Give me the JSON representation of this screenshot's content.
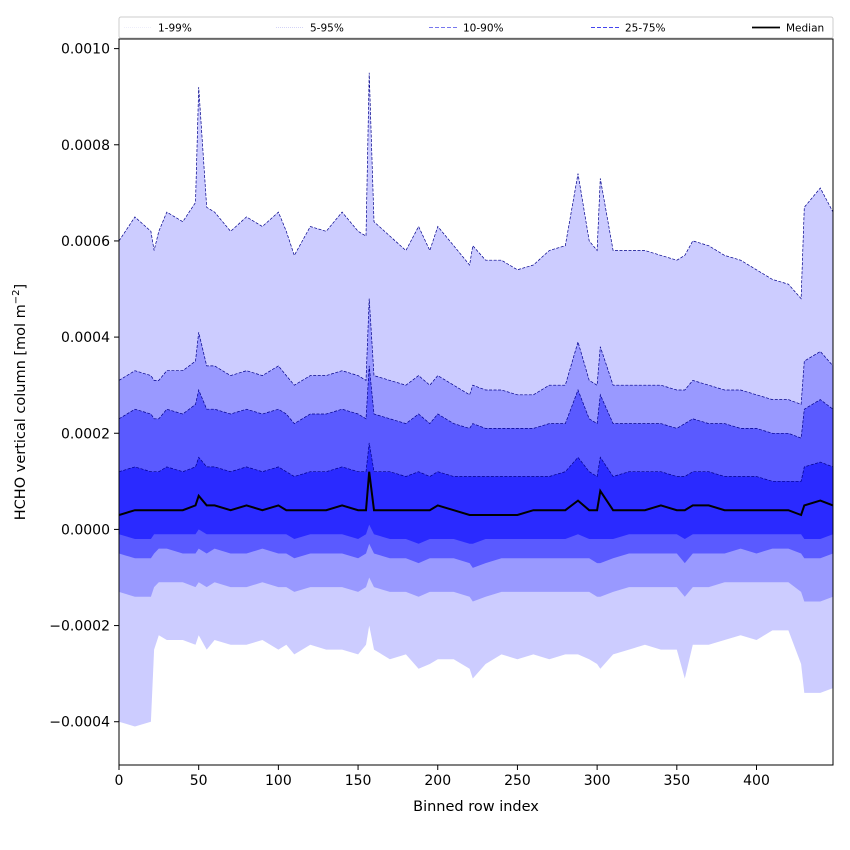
{
  "chart_data": {
    "type": "area",
    "xlabel": "Binned row index",
    "ylabel_main": "HCHO vertical column [mol m",
    "ylabel_sup": "−2",
    "ylabel_close": "]",
    "xlim": [
      0,
      448
    ],
    "ylim": [
      -0.00049,
      0.00102
    ],
    "x_ticks": [
      0,
      50,
      100,
      150,
      200,
      250,
      300,
      350,
      400
    ],
    "x_tick_labels": [
      "0",
      "50",
      "100",
      "150",
      "200",
      "250",
      "300",
      "350",
      "400"
    ],
    "y_ticks": [
      -0.0004,
      -0.0002,
      0.0,
      0.0002,
      0.0004,
      0.0006,
      0.0008,
      0.001
    ],
    "y_tick_labels": [
      "−0.0004",
      "−0.0002",
      "0.0000",
      "0.0002",
      "0.0004",
      "0.0006",
      "0.0008",
      "0.0010"
    ],
    "legend": {
      "placement": "top, spanning full width",
      "entries": [
        {
          "label": "1-99%",
          "color": "#ddddf6",
          "dash": "1,1",
          "width": 0.6
        },
        {
          "label": "5-95%",
          "color": "#aaaaee",
          "dash": "1,1",
          "width": 0.6
        },
        {
          "label": "10-90%",
          "color": "#7777ee",
          "dash": "4,2",
          "width": 0.9
        },
        {
          "label": "25-75%",
          "color": "#4444ee",
          "dash": "4,2",
          "width": 1.1
        },
        {
          "label": "Median",
          "color": "#000000",
          "dash": "",
          "width": 1.8
        }
      ]
    },
    "fill_colors": [
      "#ccccff",
      "#9999ff",
      "#5a5aff",
      "#2a2aff"
    ],
    "edge_color": "#00008b",
    "median_color": "#000000",
    "x": [
      0,
      10,
      20,
      22,
      25,
      30,
      40,
      48,
      50,
      55,
      60,
      70,
      80,
      90,
      100,
      105,
      110,
      120,
      130,
      140,
      150,
      155,
      157,
      160,
      170,
      180,
      188,
      195,
      200,
      210,
      220,
      222,
      230,
      240,
      250,
      260,
      270,
      280,
      288,
      295,
      300,
      302,
      310,
      320,
      330,
      340,
      350,
      355,
      360,
      370,
      380,
      390,
      400,
      410,
      420,
      428,
      430,
      440,
      448
    ],
    "series": [
      {
        "name": "1-99%",
        "lower": [
          -0.0004,
          -0.00041,
          -0.0004,
          -0.00025,
          -0.00022,
          -0.00023,
          -0.00023,
          -0.00024,
          -0.00022,
          -0.00025,
          -0.00023,
          -0.00024,
          -0.00024,
          -0.00023,
          -0.00025,
          -0.00024,
          -0.00026,
          -0.00024,
          -0.00025,
          -0.00025,
          -0.00026,
          -0.00024,
          -0.0002,
          -0.00025,
          -0.00027,
          -0.00026,
          -0.00029,
          -0.00028,
          -0.00027,
          -0.00027,
          -0.00029,
          -0.00031,
          -0.00028,
          -0.00026,
          -0.00027,
          -0.00026,
          -0.00027,
          -0.00026,
          -0.00026,
          -0.00027,
          -0.00028,
          -0.00029,
          -0.00026,
          -0.00025,
          -0.00024,
          -0.00025,
          -0.00025,
          -0.00031,
          -0.00024,
          -0.00024,
          -0.00023,
          -0.00022,
          -0.00023,
          -0.00021,
          -0.00021,
          -0.00028,
          -0.00034,
          -0.00034,
          -0.00033
        ],
        "upper": [
          0.0006,
          0.00065,
          0.00062,
          0.00058,
          0.00062,
          0.00066,
          0.00064,
          0.00068,
          0.00092,
          0.00067,
          0.00066,
          0.00062,
          0.00065,
          0.00063,
          0.00066,
          0.00062,
          0.00057,
          0.00063,
          0.00062,
          0.00066,
          0.00062,
          0.00061,
          0.00095,
          0.00064,
          0.00061,
          0.00058,
          0.00063,
          0.00058,
          0.00063,
          0.00059,
          0.00055,
          0.00059,
          0.00056,
          0.00056,
          0.00054,
          0.00055,
          0.00058,
          0.00059,
          0.00074,
          0.0006,
          0.00058,
          0.00073,
          0.00058,
          0.00058,
          0.00058,
          0.00057,
          0.00056,
          0.00057,
          0.0006,
          0.00059,
          0.00057,
          0.00056,
          0.00054,
          0.00052,
          0.00051,
          0.00048,
          0.00067,
          0.00071,
          0.00066
        ]
      },
      {
        "name": "5-95%",
        "lower": [
          -0.00013,
          -0.00014,
          -0.00014,
          -0.00012,
          -0.00011,
          -0.00011,
          -0.00011,
          -0.00012,
          -0.00011,
          -0.00012,
          -0.00011,
          -0.00012,
          -0.00012,
          -0.00011,
          -0.00012,
          -0.00012,
          -0.00013,
          -0.00012,
          -0.00012,
          -0.00012,
          -0.00013,
          -0.00012,
          -0.0001,
          -0.00012,
          -0.00013,
          -0.00013,
          -0.00014,
          -0.00013,
          -0.00013,
          -0.00013,
          -0.00014,
          -0.00015,
          -0.00014,
          -0.00013,
          -0.00013,
          -0.00013,
          -0.00013,
          -0.00013,
          -0.00013,
          -0.00013,
          -0.00014,
          -0.00014,
          -0.00013,
          -0.00012,
          -0.00012,
          -0.00012,
          -0.00012,
          -0.00014,
          -0.00012,
          -0.00012,
          -0.00011,
          -0.00011,
          -0.00011,
          -0.00011,
          -0.00011,
          -0.00013,
          -0.00015,
          -0.00015,
          -0.00014
        ],
        "upper": [
          0.00031,
          0.00033,
          0.00032,
          0.00031,
          0.00031,
          0.00033,
          0.00033,
          0.00035,
          0.00041,
          0.00034,
          0.00034,
          0.00032,
          0.00033,
          0.00032,
          0.00034,
          0.00032,
          0.0003,
          0.00032,
          0.00032,
          0.00033,
          0.00032,
          0.00031,
          0.00048,
          0.00032,
          0.00031,
          0.0003,
          0.00032,
          0.0003,
          0.00032,
          0.0003,
          0.00028,
          0.0003,
          0.00029,
          0.00029,
          0.00028,
          0.00028,
          0.0003,
          0.0003,
          0.00039,
          0.00031,
          0.0003,
          0.00038,
          0.0003,
          0.0003,
          0.0003,
          0.0003,
          0.00029,
          0.00029,
          0.00031,
          0.0003,
          0.00029,
          0.00029,
          0.00028,
          0.00027,
          0.00027,
          0.00026,
          0.00035,
          0.00037,
          0.00034
        ]
      },
      {
        "name": "10-90%",
        "lower": [
          -5e-05,
          -6e-05,
          -6e-05,
          -5e-05,
          -4e-05,
          -4e-05,
          -5e-05,
          -5e-05,
          -4e-05,
          -5e-05,
          -4e-05,
          -5e-05,
          -5e-05,
          -4e-05,
          -5e-05,
          -5e-05,
          -6e-05,
          -5e-05,
          -5e-05,
          -5e-05,
          -6e-05,
          -5e-05,
          -3e-05,
          -5e-05,
          -6e-05,
          -6e-05,
          -7e-05,
          -6e-05,
          -6e-05,
          -6e-05,
          -7e-05,
          -8e-05,
          -7e-05,
          -6e-05,
          -6e-05,
          -6e-05,
          -6e-05,
          -6e-05,
          -6e-05,
          -6e-05,
          -7e-05,
          -7e-05,
          -6e-05,
          -5e-05,
          -5e-05,
          -5e-05,
          -5e-05,
          -7e-05,
          -5e-05,
          -5e-05,
          -5e-05,
          -4e-05,
          -5e-05,
          -4e-05,
          -4e-05,
          -5e-05,
          -6e-05,
          -6e-05,
          -5e-05
        ],
        "upper": [
          0.00023,
          0.00025,
          0.00024,
          0.00023,
          0.00023,
          0.00025,
          0.00024,
          0.00026,
          0.00029,
          0.00025,
          0.00025,
          0.00024,
          0.00025,
          0.00024,
          0.00025,
          0.00024,
          0.00022,
          0.00024,
          0.00024,
          0.00025,
          0.00024,
          0.00023,
          0.00034,
          0.00024,
          0.00023,
          0.00022,
          0.00024,
          0.00022,
          0.00024,
          0.00022,
          0.00021,
          0.00022,
          0.00021,
          0.00021,
          0.00021,
          0.00021,
          0.00022,
          0.00022,
          0.00029,
          0.00023,
          0.00022,
          0.00028,
          0.00022,
          0.00022,
          0.00022,
          0.00022,
          0.00021,
          0.00022,
          0.00023,
          0.00022,
          0.00022,
          0.00021,
          0.00021,
          0.0002,
          0.0002,
          0.00019,
          0.00025,
          0.00027,
          0.00025
        ]
      },
      {
        "name": "25-75%",
        "lower": [
          -1e-05,
          -2e-05,
          -2e-05,
          -1e-05,
          -1e-05,
          -1e-05,
          -1e-05,
          -1e-05,
          0.0,
          -1e-05,
          -1e-05,
          -1e-05,
          -1e-05,
          -1e-05,
          -1e-05,
          -1e-05,
          -2e-05,
          -1e-05,
          -1e-05,
          -1e-05,
          -2e-05,
          -1e-05,
          1e-05,
          -1e-05,
          -2e-05,
          -2e-05,
          -3e-05,
          -2e-05,
          -2e-05,
          -2e-05,
          -3e-05,
          -3e-05,
          -2e-05,
          -2e-05,
          -2e-05,
          -2e-05,
          -2e-05,
          -2e-05,
          -1e-05,
          -2e-05,
          -2e-05,
          -2e-05,
          -2e-05,
          -1e-05,
          -1e-05,
          -1e-05,
          -1e-05,
          -2e-05,
          -1e-05,
          -1e-05,
          -1e-05,
          -1e-05,
          -1e-05,
          -1e-05,
          -1e-05,
          -1e-05,
          -2e-05,
          -2e-05,
          -1e-05
        ],
        "upper": [
          0.00012,
          0.00013,
          0.00012,
          0.00012,
          0.00012,
          0.00013,
          0.00012,
          0.00013,
          0.00015,
          0.00013,
          0.00013,
          0.00012,
          0.00013,
          0.00012,
          0.00013,
          0.00012,
          0.00011,
          0.00012,
          0.00012,
          0.00013,
          0.00012,
          0.00012,
          0.00018,
          0.00012,
          0.00012,
          0.00011,
          0.00012,
          0.00011,
          0.00012,
          0.00011,
          0.00011,
          0.00011,
          0.00011,
          0.00011,
          0.00011,
          0.00011,
          0.00011,
          0.00012,
          0.00015,
          0.00012,
          0.00011,
          0.00015,
          0.00011,
          0.00012,
          0.00012,
          0.00012,
          0.00011,
          0.00011,
          0.00012,
          0.00012,
          0.00011,
          0.00011,
          0.00011,
          0.0001,
          0.0001,
          0.0001,
          0.00013,
          0.00014,
          0.00013
        ]
      },
      {
        "name": "Median",
        "values": [
          3e-05,
          4e-05,
          4e-05,
          4e-05,
          4e-05,
          4e-05,
          4e-05,
          5e-05,
          7e-05,
          5e-05,
          5e-05,
          4e-05,
          5e-05,
          4e-05,
          5e-05,
          4e-05,
          4e-05,
          4e-05,
          4e-05,
          5e-05,
          4e-05,
          4e-05,
          0.00012,
          4e-05,
          4e-05,
          4e-05,
          4e-05,
          4e-05,
          5e-05,
          4e-05,
          3e-05,
          3e-05,
          3e-05,
          3e-05,
          3e-05,
          4e-05,
          4e-05,
          4e-05,
          6e-05,
          4e-05,
          4e-05,
          8e-05,
          4e-05,
          4e-05,
          4e-05,
          5e-05,
          4e-05,
          4e-05,
          5e-05,
          5e-05,
          4e-05,
          4e-05,
          4e-05,
          4e-05,
          4e-05,
          3e-05,
          5e-05,
          6e-05,
          5e-05
        ]
      }
    ]
  }
}
